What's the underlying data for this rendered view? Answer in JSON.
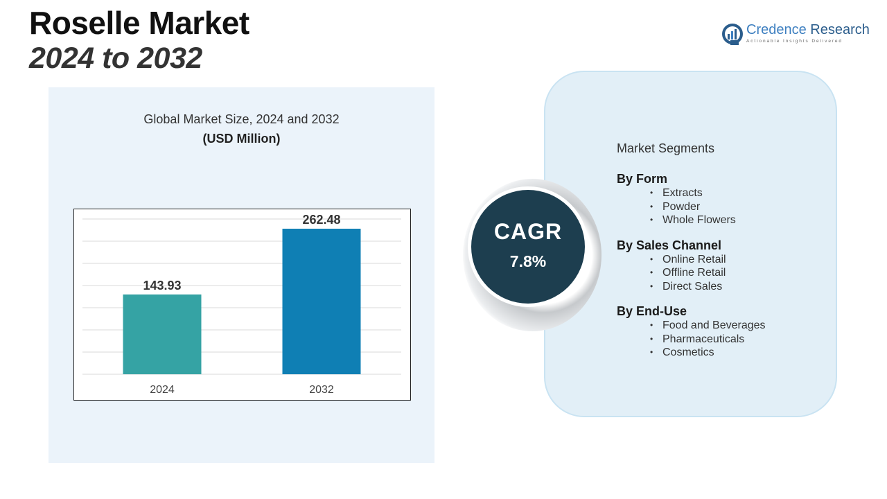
{
  "header": {
    "title": "Roselle Market",
    "subtitle": "2024 to 2032"
  },
  "logo": {
    "name_part1": "Credence",
    "name_part2": "Research",
    "tagline": "Actionable Insights Delivered"
  },
  "chart_data": {
    "type": "bar",
    "title": "Global Market Size, 2024 and 2032",
    "unit_label": "(USD Million)",
    "categories": [
      "2024",
      "2032"
    ],
    "values": [
      143.93,
      262.48
    ],
    "value_labels": [
      "143.93",
      "262.48"
    ],
    "colors": [
      "#35a3a4",
      "#0f7fb4"
    ],
    "ylim": [
      0,
      280
    ],
    "grid": true,
    "legend": "none"
  },
  "cagr": {
    "label": "CAGR",
    "value": "7.8%"
  },
  "segments": {
    "heading": "Market Segments",
    "groups": [
      {
        "title": "By Form",
        "items": [
          "Extracts",
          "Powder",
          "Whole Flowers"
        ]
      },
      {
        "title": "By Sales Channel",
        "items": [
          "Online Retail",
          "Offline Retail",
          "Direct Sales"
        ]
      },
      {
        "title": "By End-Use",
        "items": [
          "Food and Beverages",
          "Pharmaceuticals",
          "Cosmetics"
        ]
      }
    ]
  },
  "colors": {
    "panel_background": "#ebf3fa",
    "segment_card": "#e2eff7",
    "cagr_circle": "#1d3e4f",
    "bar_2024": "#35a3a4",
    "bar_2032": "#0f7fb4",
    "brand_blue": "#3d7fc0"
  }
}
